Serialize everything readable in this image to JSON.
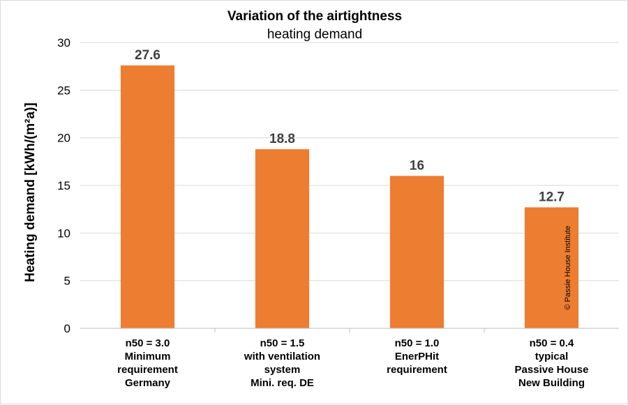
{
  "chart_data": {
    "type": "bar",
    "title": "Variation of the airtightness",
    "subtitle": "heating demand",
    "ylabel": "Heating demand [kWh/(m²a)]",
    "xlabel": "",
    "ylim": [
      0,
      30
    ],
    "yticks": [
      0,
      5,
      10,
      15,
      20,
      25,
      30
    ],
    "grid": true,
    "categories": [
      [
        "n50 = 3.0",
        "Minimum",
        "requirement",
        "Germany"
      ],
      [
        "n50 = 1.5",
        "with ventilation",
        "system",
        "Mini. req. DE"
      ],
      [
        "n50 = 1.0",
        "EnerPHit",
        "requirement"
      ],
      [
        "n50 = 0.4",
        "typical",
        "Passive House",
        "New Building"
      ]
    ],
    "values": [
      27.6,
      18.8,
      16,
      12.7
    ],
    "value_labels": [
      "27.6",
      "18.8",
      "16",
      "12.7"
    ],
    "bar_color": "#ED7D31",
    "watermark": "© Passie House Institute"
  }
}
